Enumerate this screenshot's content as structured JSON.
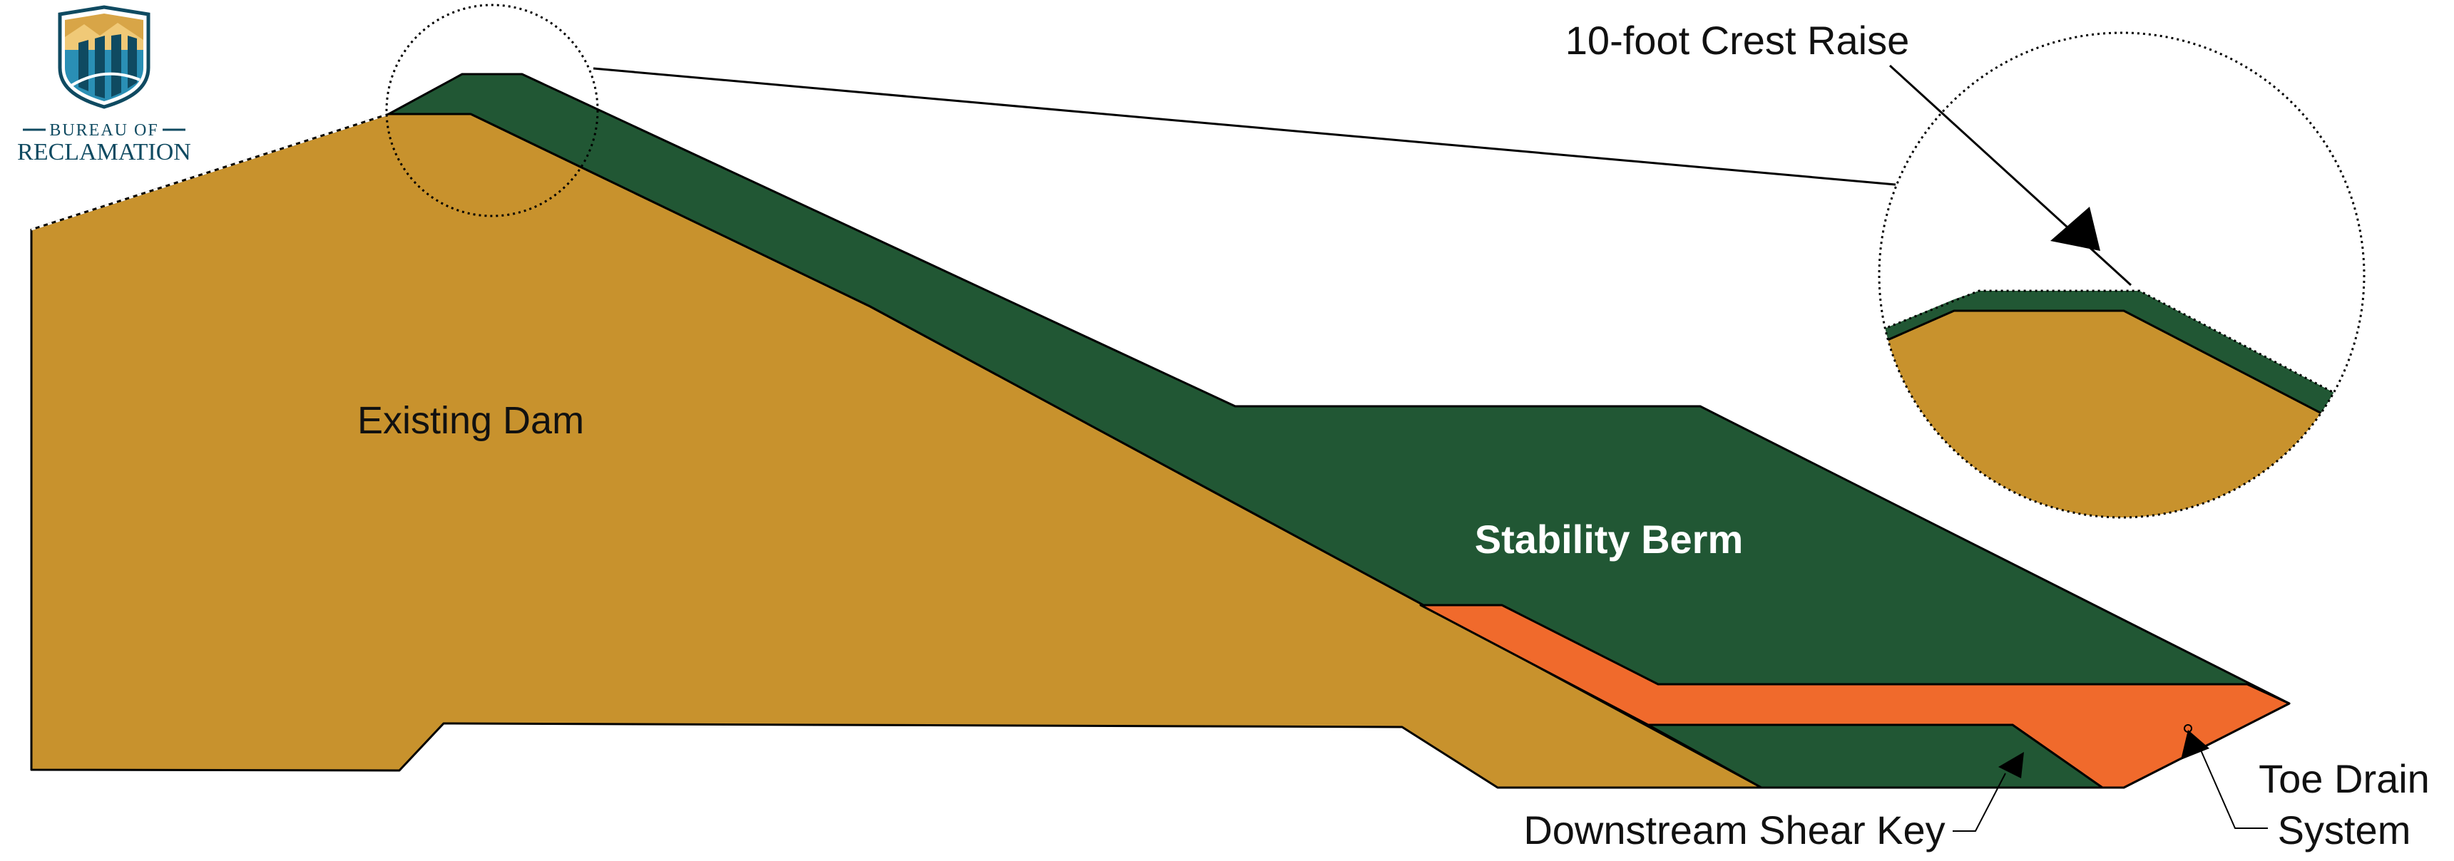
{
  "logo": {
    "line1": "BUREAU OF",
    "line2": "RECLAMATION"
  },
  "labels": {
    "existing_dam": "Existing Dam",
    "stability_berm": "Stability Berm",
    "crest_raise": "10-foot Crest Raise",
    "shear_key": "Downstream Shear Key",
    "toe_drain_line1": "Toe Drain",
    "toe_drain_line2": "System"
  },
  "colors": {
    "existing_dam": "#c8922d",
    "stability_berm": "#215734",
    "drain_layer": "#f06a2c",
    "logo_navy": "#0f4a61",
    "logo_gold": "#d8a547",
    "logo_teal": "#2a8fb5"
  }
}
